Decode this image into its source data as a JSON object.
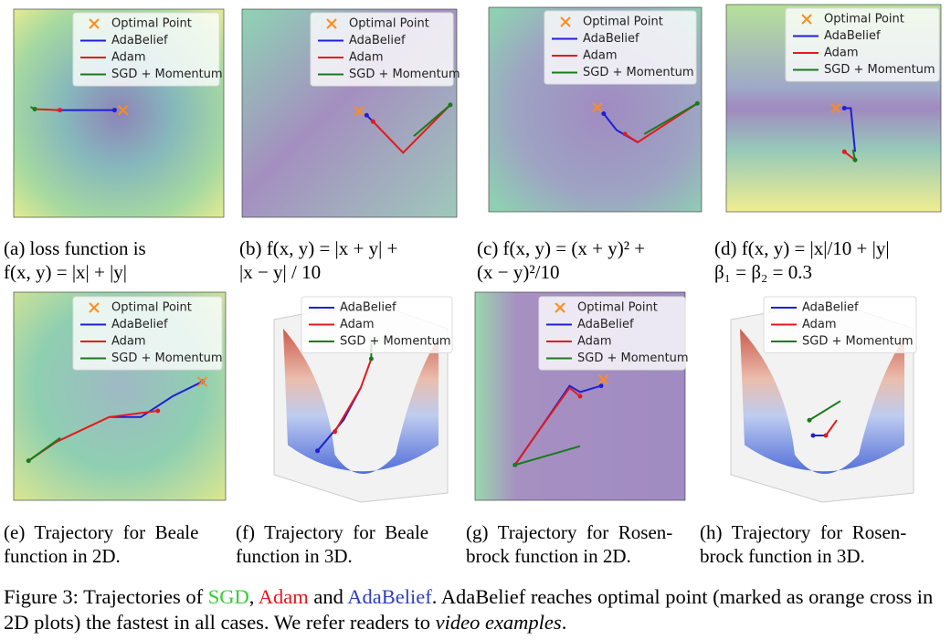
{
  "panels": [
    {
      "caption": [
        "(a) loss function is",
        "f(x, y) = |x| + |y|"
      ],
      "legend": [
        {
          "label": "Optimal Point",
          "color": "#ff8c1a"
        },
        {
          "label": "AdaBelief",
          "color": "#1f1fd6"
        },
        {
          "label": "Adam",
          "color": "#e31a1c"
        },
        {
          "label": "SGD + Momentum",
          "color": "#1a7a1a"
        }
      ]
    },
    {
      "caption": [
        "(b) f(x, y) = |x + y| +",
        "|x − y| / 10"
      ],
      "legend": [
        {
          "label": "Optimal Point",
          "color": "#ff8c1a"
        },
        {
          "label": "AdaBelief",
          "color": "#1f1fd6"
        },
        {
          "label": "Adam",
          "color": "#e31a1c"
        },
        {
          "label": "SGD + Momentum",
          "color": "#1a7a1a"
        }
      ]
    },
    {
      "caption": [
        "(c) f(x, y) = (x + y)² +",
        "(x − y)²/10"
      ],
      "legend": [
        {
          "label": "Optimal Point",
          "color": "#ff8c1a"
        },
        {
          "label": "AdaBelief",
          "color": "#1f1fd6"
        },
        {
          "label": "Adam",
          "color": "#e31a1c"
        },
        {
          "label": "SGD + Momentum",
          "color": "#1a7a1a"
        }
      ]
    },
    {
      "caption": [
        "(d) f(x, y) = |x|/10 + |y|",
        "β₁ = β₂ = 0.3"
      ],
      "legend": [
        {
          "label": "Optimal Point",
          "color": "#ff8c1a"
        },
        {
          "label": "AdaBelief",
          "color": "#1f1fd6"
        },
        {
          "label": "Adam",
          "color": "#e31a1c"
        },
        {
          "label": "SGD + Momentum",
          "color": "#1a7a1a"
        }
      ]
    },
    {
      "caption": [
        "(e)  Trajectory  for  Beale",
        "function in 2D."
      ],
      "legend": [
        {
          "label": "Optimal Point",
          "color": "#ff8c1a"
        },
        {
          "label": "AdaBelief",
          "color": "#1f1fd6"
        },
        {
          "label": "Adam",
          "color": "#e31a1c"
        },
        {
          "label": "SGD + Momentum",
          "color": "#1a7a1a"
        }
      ]
    },
    {
      "caption": [
        "(f)  Trajectory  for  Beale",
        "function in 3D."
      ],
      "legend": [
        {
          "label": "AdaBelief",
          "color": "#1f1fd6"
        },
        {
          "label": "Adam",
          "color": "#e31a1c"
        },
        {
          "label": "SGD + Momentum",
          "color": "#1a7a1a"
        }
      ]
    },
    {
      "caption": [
        "(g)  Trajectory  for  Rosen-",
        "brock function in 2D."
      ],
      "legend": [
        {
          "label": "Optimal Point",
          "color": "#ff8c1a"
        },
        {
          "label": "AdaBelief",
          "color": "#1f1fd6"
        },
        {
          "label": "Adam",
          "color": "#e31a1c"
        },
        {
          "label": "SGD + Momentum",
          "color": "#1a7a1a"
        }
      ]
    },
    {
      "caption": [
        "(h)  Trajectory  for  Rosen-",
        "brock function in 3D."
      ],
      "legend": [
        {
          "label": "AdaBelief",
          "color": "#1f1fd6"
        },
        {
          "label": "Adam",
          "color": "#e31a1c"
        },
        {
          "label": "SGD + Momentum",
          "color": "#1a7a1a"
        }
      ]
    }
  ],
  "figure_caption": [
    {
      "text": "Figure 3: Trajectories of ",
      "color": "#000000"
    },
    {
      "text": "SGD",
      "color": "#33cc33"
    },
    {
      "text": ", ",
      "color": "#000000"
    },
    {
      "text": "Adam",
      "color": "#e31a1c"
    },
    {
      "text": " and ",
      "color": "#000000"
    },
    {
      "text": "AdaBelief",
      "color": "#2a3fbf"
    },
    {
      "text": ". AdaBelief reaches optimal point (marked as orange cross in 2D plots) the fastest in all cases. We refer readers to ",
      "color": "#000000"
    },
    {
      "text": "video examples",
      "color": "#000000",
      "italic": true
    },
    {
      "text": ".",
      "color": "#000000"
    }
  ]
}
